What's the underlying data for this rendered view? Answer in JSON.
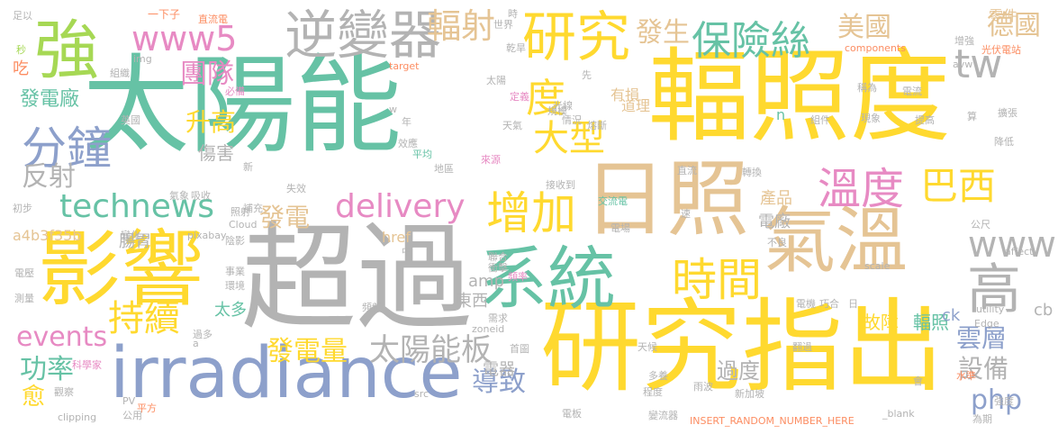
{
  "palette": {
    "green": "#66c2a5",
    "orange": "#fc8d62",
    "blue": "#8da0cb",
    "pink": "#e78ac3",
    "lime": "#a6d854",
    "yellow": "#ffd92f",
    "tan": "#e5c494",
    "gray": "#b3b3b3"
  },
  "words": {
    "w1": "太陽能",
    "w2": "輻照度",
    "w3": "超過",
    "w4": "影響",
    "w5": "研究指出",
    "w6": "irradiance",
    "w7": "系統",
    "w8": "日照",
    "w9": "氣溫",
    "w10": "強",
    "w11": "研究",
    "w12": "逆變器",
    "w13": "保險絲",
    "w14": "時間",
    "w15": "分鐘",
    "w16": "增加",
    "w17": "溫度",
    "w18": "www5",
    "w19": "technews",
    "w20": "delivery",
    "w21": "巴西",
    "w22": "大型",
    "w23": "持續",
    "w24": "www",
    "w25": "高",
    "w26": "輻射",
    "w27": "tw",
    "w28": "度",
    "w29": "太陽能板",
    "w30": "發電量",
    "w31": "美國",
    "w32": "德國",
    "w33": "團隊",
    "w34": "events",
    "w35": "發生",
    "w36": "反射",
    "w37": "升高",
    "w38": "發電",
    "w39": "雲層",
    "w40": "設備",
    "w41": "php",
    "w42": "導致",
    "w43": "功率",
    "w44": "過度",
    "w45": "故障",
    "w46": "輻照",
    "w47": "愈",
    "w48": "發電廠",
    "w49": "電器",
    "w50": "東西",
    "w51": "amp",
    "w52": "電廠",
    "w53": "產品",
    "w54": "傷害",
    "w55": "腸胃",
    "w56": "href",
    "w57": "a4b3f35b",
    "w58": "太多",
    "w59": "ck",
    "w60": "cb",
    "w61": "零件",
    "w62": "有損",
    "w63": "道理",
    "w64": "吃",
    "w65": "一下子",
    "w66": "直流電",
    "w67": "components",
    "w68": "光伏電站",
    "w69": "增強",
    "w70": "世界",
    "w71": "時",
    "w72": "乾旱",
    "w73": "target",
    "w74": "必備",
    "w75": "img",
    "w76": "組織",
    "w77": "足以",
    "w78": "秒",
    "w79": "太陽",
    "w80": "光線",
    "w81": "avw",
    "w82": "先",
    "w83": "電流",
    "w84": "定義",
    "w85": "稱為",
    "w86": "規模",
    "w87": "情況",
    "w88": "熔斷",
    "w89": "現象",
    "w90": "組件",
    "w91": "擴張",
    "w92": "提高",
    "w93": "英國",
    "w94": "效應",
    "w95": "天氣",
    "w96": "年",
    "w97": "算",
    "w98": "降低",
    "w99": "n",
    "w100": "w",
    "w101": "新",
    "w102": "平均",
    "w103": "地區",
    "w104": "來源",
    "w105": "直流",
    "w106": "轉換",
    "w107": "氣象",
    "w108": "吸收",
    "w109": "失效",
    "w110": "接收到",
    "w111": "補充",
    "w112": "交流電",
    "w113": "初步",
    "w114": "照射",
    "w115": "Cloud",
    "w116": "公尺",
    "w117": "變化",
    "w118": "pixabay",
    "w119": "電場",
    "w120": "不良",
    "w121": "affect",
    "w122": "陰影",
    "w123": "聯合",
    "w124": "中",
    "w125": "scale",
    "w126": "衝擊",
    "w127": "頻率",
    "w128": "電壓",
    "w129": "事業",
    "w130": "環境",
    "w131": "utility",
    "w132": "測量",
    "w133": "電機",
    "w134": "巧合",
    "w135": "日",
    "w136": "zoneid",
    "w137": "Edge",
    "w138": "過多",
    "w139": "頻頻",
    "w140": "需求",
    "w141": "觀察",
    "w142": "首圖",
    "w143": "天候",
    "w144": "翻過",
    "w145": "科學家",
    "w146": "a",
    "w147": "多養",
    "w148": "水準",
    "w149": "PV",
    "w150": "平方",
    "w151": "src",
    "w152": "程度",
    "w153": "雨波",
    "w154": "新加坡",
    "w155": "公用",
    "w156": "clipping",
    "w157": "電板",
    "w158": "變流器",
    "w159": "INSERT_RANDOM_NUMBER_HERE",
    "w160": "_blank",
    "w161": "為期",
    "w162": "強度",
    "w163": "速",
    "w164": "會"
  }
}
